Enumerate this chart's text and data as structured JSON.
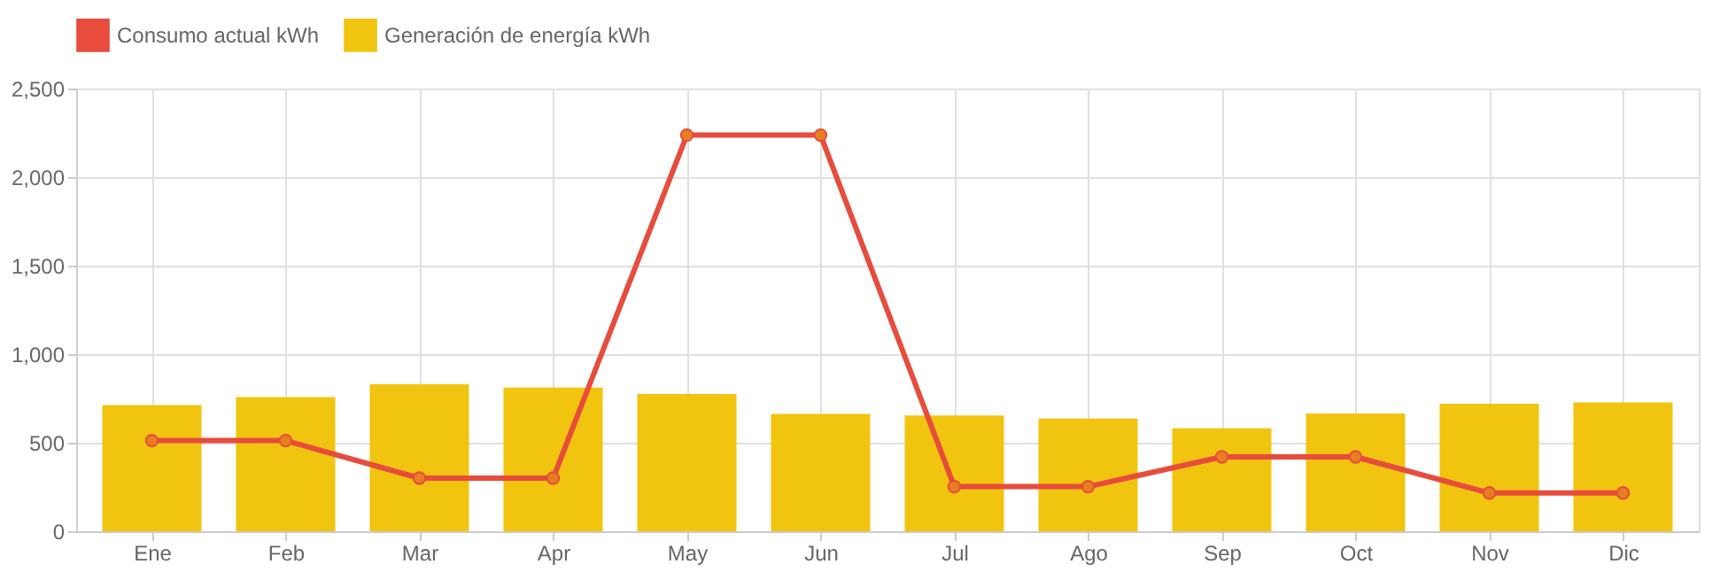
{
  "chart_data": {
    "type": "bar",
    "categories": [
      "Ene",
      "Feb",
      "Mar",
      "Apr",
      "May",
      "Jun",
      "Jul",
      "Ago",
      "Sep",
      "Oct",
      "Nov",
      "Dic"
    ],
    "series": [
      {
        "name": "Consumo actual kWh",
        "type": "line",
        "color": "#e74c3c",
        "values": [
          512,
          512,
          300,
          300,
          2237,
          2237,
          252,
          252,
          420,
          420,
          216,
          216
        ]
      },
      {
        "name": "Generación de energía kWh",
        "type": "bar",
        "color": "#f1c40f",
        "values": [
          713,
          757,
          830,
          811,
          775,
          662,
          654,
          636,
          581,
          665,
          720,
          727
        ]
      }
    ],
    "ylim": [
      0,
      2500
    ],
    "yticks": [
      0,
      500,
      {
        "value": 1000,
        "label": "1,000"
      },
      {
        "value": 1500,
        "label": "1,500"
      },
      {
        "value": 2000,
        "label": "2,000"
      },
      {
        "value": 2500,
        "label": "2,500"
      }
    ],
    "grid": true,
    "legend": "top",
    "marker": "circle",
    "line_style": "solid"
  }
}
